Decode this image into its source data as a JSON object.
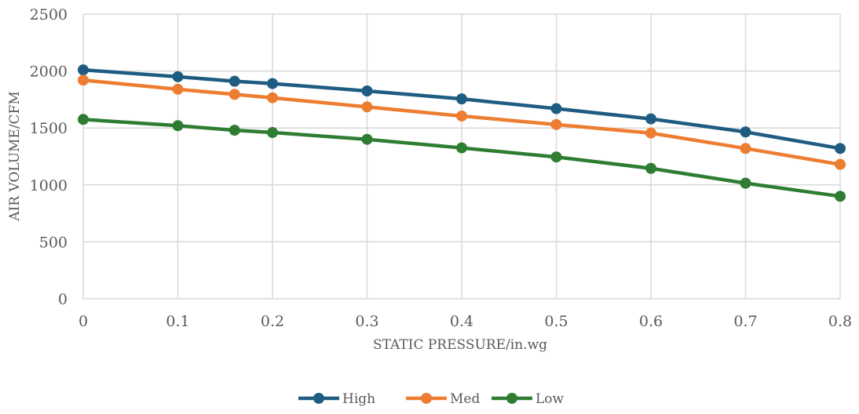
{
  "chart_data": {
    "type": "line",
    "title": "",
    "xlabel": "STATIC PRESSURE/in.wg",
    "ylabel": "AIR VOLUME/CFM",
    "x": [
      0,
      0.1,
      0.16,
      0.2,
      0.3,
      0.4,
      0.5,
      0.6,
      0.7,
      0.8
    ],
    "xlim": [
      0,
      0.8
    ],
    "ylim": [
      0,
      2500
    ],
    "x_ticks": [
      0,
      0.1,
      0.2,
      0.3,
      0.4,
      0.5,
      0.6,
      0.7,
      0.8
    ],
    "x_tick_labels": [
      "0",
      "0.1",
      "0.2",
      "0.3",
      "0.4",
      "0.5",
      "0.6",
      "0.7",
      "0.8"
    ],
    "y_ticks": [
      0,
      500,
      1000,
      1500,
      2000,
      2500
    ],
    "y_tick_labels": [
      "0",
      "500",
      "1000",
      "1500",
      "2000",
      "2500"
    ],
    "grid": true,
    "legend_position": "bottom",
    "series": [
      {
        "name": "High",
        "color": "#1f5c82",
        "values": [
          2010,
          1950,
          1910,
          1890,
          1825,
          1755,
          1670,
          1580,
          1465,
          1320
        ]
      },
      {
        "name": "Med",
        "color": "#ed7d31",
        "values": [
          1920,
          1840,
          1795,
          1765,
          1685,
          1605,
          1530,
          1455,
          1320,
          1180
        ]
      },
      {
        "name": "Low",
        "color": "#2e7d32",
        "values": [
          1575,
          1520,
          1480,
          1460,
          1400,
          1325,
          1245,
          1145,
          1015,
          900
        ]
      }
    ]
  }
}
